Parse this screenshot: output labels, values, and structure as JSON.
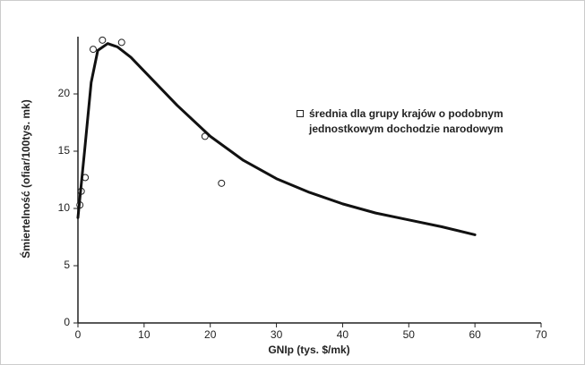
{
  "chart_data": {
    "type": "scatter",
    "x_label": "GNIp (tys. $/mk)",
    "y_label": "Śmiertelność (ofiar/100tys. mk)",
    "xlim": [
      0,
      70
    ],
    "xticks": [
      0,
      10,
      20,
      30,
      40,
      50,
      60,
      70
    ],
    "ylim": [
      0,
      25
    ],
    "yticks": [
      0,
      5,
      10,
      15,
      20
    ],
    "series": [
      {
        "name": "średnia dla grupy krajów o podobnym jednostkowym dochodzie narodowym",
        "type": "scatter",
        "color": "#222222",
        "x": [
          0.3,
          0.5,
          1.1,
          2.3,
          3.7,
          6.6,
          19.2,
          21.7
        ],
        "values": [
          10.3,
          11.5,
          12.7,
          23.9,
          24.7,
          24.5,
          16.3,
          12.2
        ]
      },
      {
        "type": "line",
        "color": "#111111",
        "x": [
          0,
          1,
          2,
          3,
          4.5,
          6,
          8,
          10,
          15,
          20,
          25,
          30,
          35,
          40,
          45,
          50,
          55,
          60
        ],
        "values": [
          9.2,
          15,
          21,
          23.8,
          24.4,
          24.1,
          23.2,
          22,
          19,
          16.3,
          14.2,
          12.6,
          11.4,
          10.4,
          9.6,
          9,
          8.4,
          7.7
        ]
      }
    ]
  }
}
